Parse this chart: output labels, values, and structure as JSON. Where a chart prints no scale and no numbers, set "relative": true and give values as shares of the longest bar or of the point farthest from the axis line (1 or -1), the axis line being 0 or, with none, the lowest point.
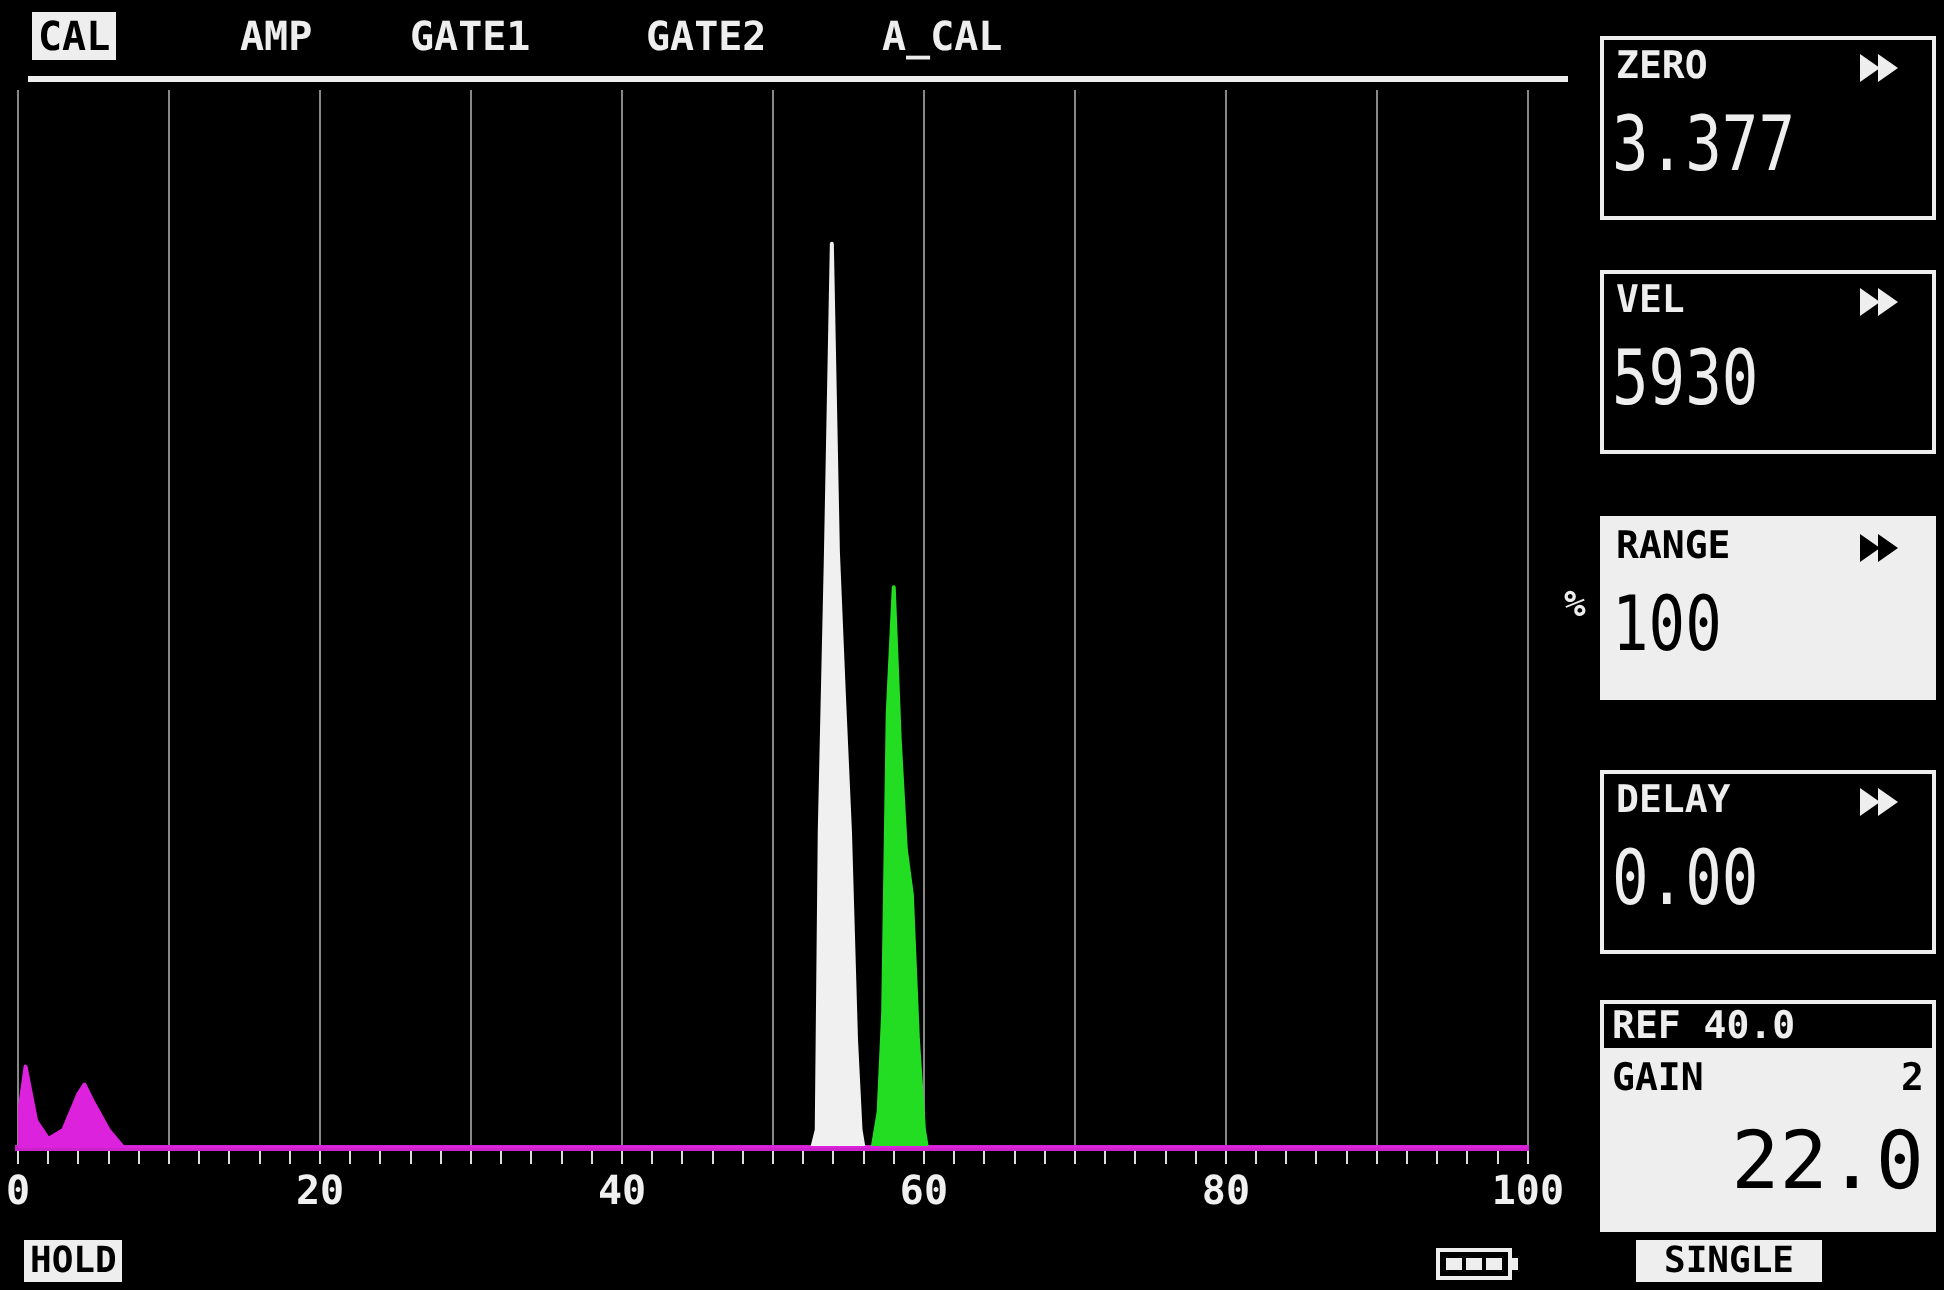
{
  "chart_data": {
    "type": "area",
    "relative": true,
    "xlim": [
      0,
      100
    ],
    "xticks": [
      0,
      {
        "value": 2,
        "label": null
      },
      {
        "value": 4,
        "label": null
      },
      {
        "value": 6,
        "label": null
      },
      {
        "value": 8,
        "label": null
      },
      {
        "value": 10,
        "label": null
      },
      {
        "value": 12,
        "label": null
      },
      {
        "value": 14,
        "label": null
      },
      {
        "value": 16,
        "label": null
      },
      {
        "value": 18,
        "label": null
      },
      20,
      {
        "value": 22,
        "label": null
      },
      {
        "value": 24,
        "label": null
      },
      {
        "value": 26,
        "label": null
      },
      {
        "value": 28,
        "label": null
      },
      {
        "value": 30,
        "label": null
      },
      {
        "value": 32,
        "label": null
      },
      {
        "value": 34,
        "label": null
      },
      {
        "value": 36,
        "label": null
      },
      {
        "value": 38,
        "label": null
      },
      40,
      {
        "value": 42,
        "label": null
      },
      {
        "value": 44,
        "label": null
      },
      {
        "value": 46,
        "label": null
      },
      {
        "value": 48,
        "label": null
      },
      {
        "value": 50,
        "label": null
      },
      {
        "value": 52,
        "label": null
      },
      {
        "value": 54,
        "label": null
      },
      {
        "value": 56,
        "label": null
      },
      {
        "value": 58,
        "label": null
      },
      60,
      {
        "value": 62,
        "label": null
      },
      {
        "value": 64,
        "label": null
      },
      {
        "value": 66,
        "label": null
      },
      {
        "value": 68,
        "label": null
      },
      {
        "value": 70,
        "label": null
      },
      {
        "value": 72,
        "label": null
      },
      {
        "value": 74,
        "label": null
      },
      {
        "value": 76,
        "label": null
      },
      {
        "value": 78,
        "label": null
      },
      80,
      {
        "value": 82,
        "label": null
      },
      {
        "value": 84,
        "label": null
      },
      {
        "value": 86,
        "label": null
      },
      {
        "value": 88,
        "label": null
      },
      {
        "value": 90,
        "label": null
      },
      {
        "value": 92,
        "label": null
      },
      {
        "value": 94,
        "label": null
      },
      {
        "value": 96,
        "label": null
      },
      {
        "value": 98,
        "label": null
      },
      100
    ],
    "grid": "x",
    "legend": false,
    "series": [
      {
        "color": "#dd22dd",
        "x": [
          0,
          0.5,
          1.2,
          2.0,
          3.0,
          4.0,
          4.4,
          5.0,
          6.0,
          7.0,
          100
        ],
        "values": [
          0.03,
          0.09,
          0.03,
          0.01,
          0.02,
          0.06,
          0.07,
          0.05,
          0.02,
          0,
          0
        ]
      },
      {
        "color": "#f0f0f0",
        "x": [
          52.6,
          52.9,
          53.1,
          53.5,
          53.9,
          54.3,
          54.7,
          55.1,
          55.5,
          55.8,
          56.0
        ],
        "values": [
          0,
          0.02,
          0.35,
          0.65,
          1,
          0.66,
          0.5,
          0.35,
          0.12,
          0.02,
          0
        ]
      },
      {
        "color": "#22dd22",
        "x": [
          56.6,
          57.0,
          57.3,
          57.6,
          58.0,
          58.4,
          58.8,
          59.2,
          59.6,
          60.0,
          60.2
        ],
        "values": [
          0,
          0.04,
          0.15,
          0.48,
          0.62,
          0.45,
          0.33,
          0.28,
          0.12,
          0.02,
          0
        ]
      }
    ],
    "annotations": [
      "CAL",
      "AMP",
      "GATE1",
      "GATE2",
      "A_CAL",
      "ZERO",
      "3.377",
      "VEL",
      "5930",
      "RANGE",
      "100",
      "DELAY",
      "0.00",
      "REF 40.0",
      "GAIN",
      "2",
      "22.0",
      "HOLD",
      "SINGLE",
      "%"
    ]
  }
}
